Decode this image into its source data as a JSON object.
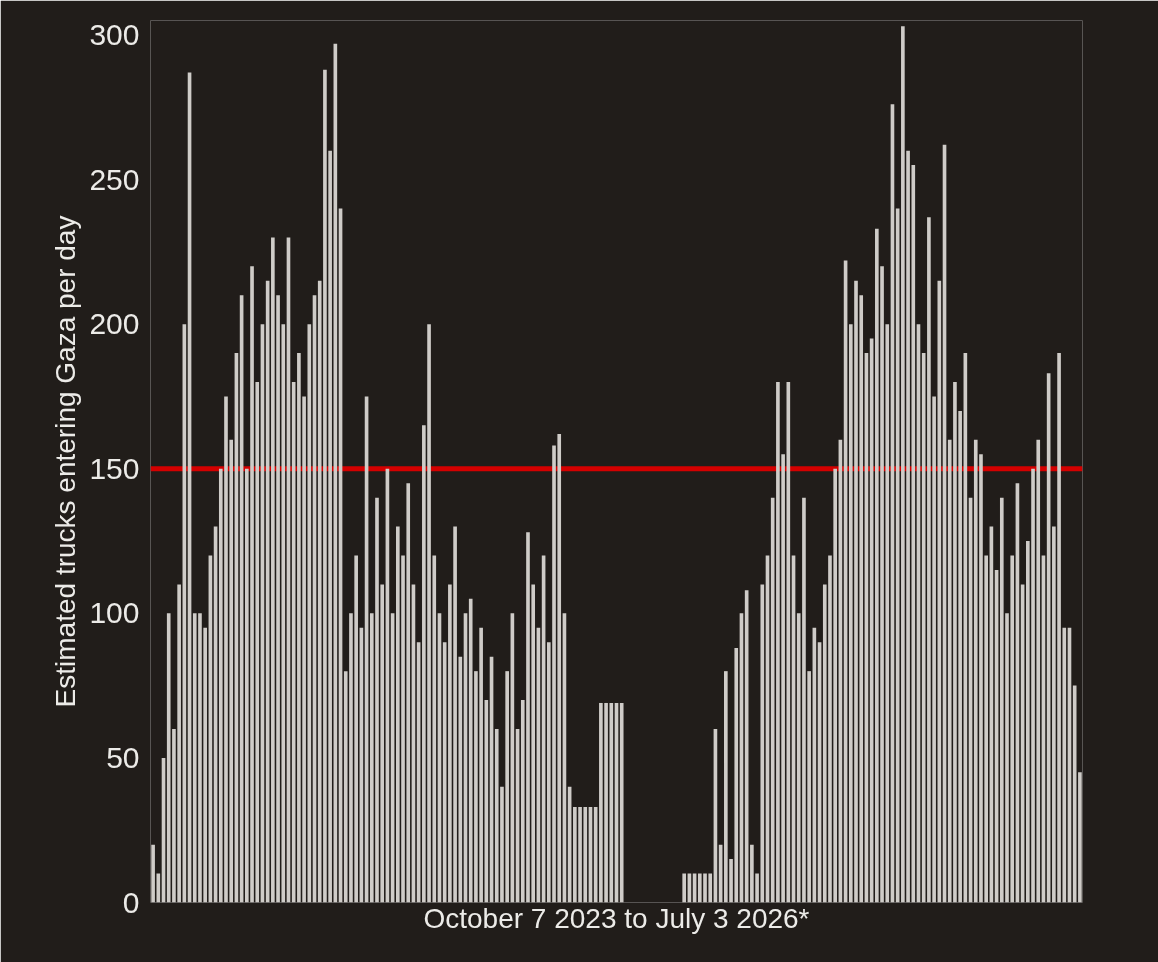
{
  "chart_data": {
    "type": "bar",
    "xlabel": "October 7 2023 to July 3 2026*",
    "ylabel": "Estimated trucks entering Gaza per day",
    "categories": [
      null,
      null,
      null,
      null,
      null,
      null,
      null,
      null,
      null,
      null,
      null,
      null,
      null,
      null,
      null,
      null,
      null,
      null,
      null,
      null,
      null,
      null,
      null,
      null,
      null,
      null,
      null,
      null,
      null,
      null,
      null,
      null,
      null,
      null,
      null,
      null,
      null,
      null,
      null,
      null,
      null,
      null,
      null,
      null,
      null,
      null,
      null,
      null,
      null,
      null,
      null,
      null,
      null,
      null,
      null,
      null,
      null,
      null,
      null,
      null,
      null,
      null,
      null,
      null,
      null,
      null,
      null,
      null,
      null,
      null,
      null,
      null,
      null,
      null,
      null,
      null,
      null,
      null,
      null,
      null,
      null,
      null,
      null,
      null,
      null,
      null,
      null,
      null,
      null,
      null,
      null,
      null,
      null,
      null,
      null,
      null,
      null,
      null,
      null,
      null,
      null,
      null,
      null,
      null,
      null,
      null,
      null,
      null,
      null,
      null,
      null,
      null,
      null,
      null,
      null,
      null,
      null,
      null,
      null,
      null,
      null,
      null,
      null,
      null,
      null,
      null,
      null,
      null,
      null,
      null,
      null,
      null,
      null,
      null,
      null,
      null,
      null,
      null,
      null,
      null,
      null,
      null,
      null,
      null,
      null,
      null,
      null,
      null,
      null,
      null,
      null,
      null,
      null,
      null,
      null,
      null,
      null,
      null,
      null,
      null,
      null,
      null,
      null,
      null,
      null,
      null,
      null,
      null,
      null,
      null,
      null,
      null,
      null,
      null,
      null,
      null,
      null,
      null,
      null
    ],
    "values": [
      20,
      10,
      50,
      100,
      60,
      110,
      200,
      287,
      100,
      100,
      95,
      120,
      130,
      150,
      175,
      160,
      190,
      210,
      150,
      220,
      180,
      200,
      215,
      230,
      210,
      200,
      230,
      180,
      190,
      175,
      200,
      210,
      215,
      288,
      260,
      297,
      240,
      80,
      100,
      120,
      95,
      175,
      100,
      140,
      110,
      150,
      100,
      130,
      120,
      145,
      110,
      90,
      165,
      200,
      120,
      100,
      90,
      110,
      130,
      85,
      100,
      105,
      80,
      95,
      70,
      85,
      60,
      40,
      80,
      100,
      60,
      70,
      128,
      110,
      95,
      120,
      90,
      158,
      162,
      100,
      40,
      33,
      33,
      33,
      33,
      33,
      69,
      69,
      69,
      69,
      69,
      0,
      0,
      0,
      0,
      0,
      0,
      0,
      0,
      0,
      0,
      0,
      10,
      10,
      10,
      10,
      10,
      10,
      60,
      20,
      80,
      15,
      88,
      100,
      108,
      20,
      10,
      110,
      120,
      140,
      180,
      155,
      180,
      120,
      100,
      140,
      80,
      95,
      90,
      110,
      120,
      150,
      160,
      222,
      200,
      215,
      210,
      190,
      195,
      233,
      220,
      200,
      276,
      240,
      303,
      260,
      255,
      200,
      190,
      237,
      175,
      215,
      262,
      160,
      180,
      170,
      190,
      140,
      160,
      155,
      120,
      130,
      115,
      140,
      100,
      120,
      145,
      110,
      125,
      150,
      160,
      120,
      183,
      130,
      190,
      95,
      95,
      75,
      45
    ],
    "color": "#cfccc8",
    "ylim": [
      0,
      305
    ],
    "yticks": [
      0,
      50,
      100,
      150,
      200,
      250,
      300
    ],
    "grid": false,
    "tick_labels": "y",
    "ref_lines": [
      {
        "axis": "y",
        "value": 150,
        "color": "#d40000"
      }
    ]
  }
}
